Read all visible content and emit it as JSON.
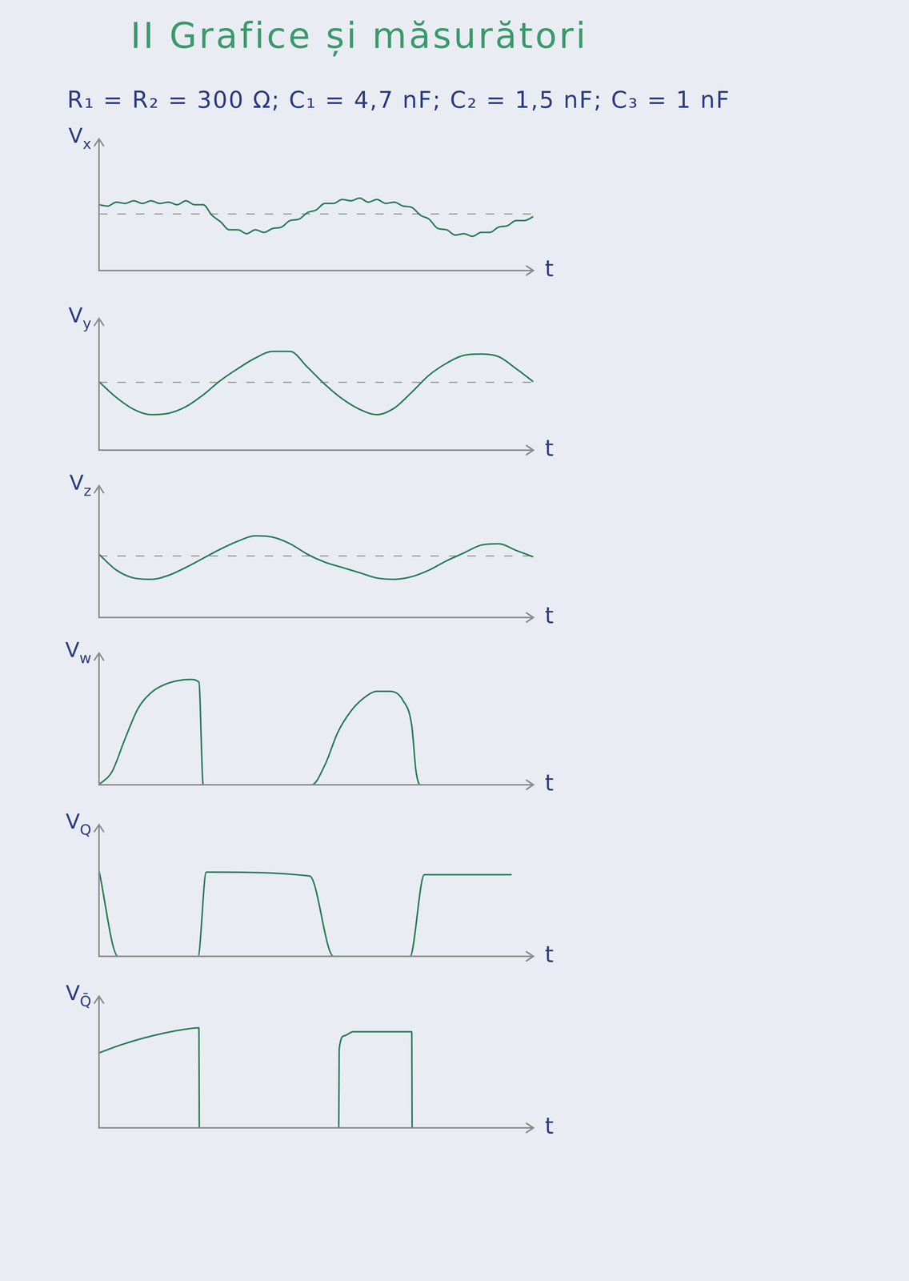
{
  "page": {
    "title": "II Grafice și măsurători",
    "parameters": "R₁ = R₂ = 300 Ω; C₁ = 4,7 nF; C₂ = 1,5 nF; C₃ = 1 nF"
  },
  "chart_data": [
    {
      "type": "line",
      "ylabel": "Vx",
      "xlabel": "t",
      "xlim": [
        0,
        100
      ],
      "ylim": [
        0,
        10
      ],
      "tick_labels": false,
      "grid": false,
      "x": [
        0,
        2,
        4,
        6,
        8,
        10,
        12,
        14,
        16,
        18,
        20,
        22,
        24,
        26,
        28,
        30,
        32,
        34,
        36,
        38,
        40,
        42,
        44,
        46,
        48,
        50,
        52,
        54,
        56,
        58,
        60,
        62,
        64,
        66,
        68,
        70,
        72,
        74,
        76,
        78,
        80,
        82,
        84,
        86,
        88,
        90,
        92,
        94,
        96,
        98,
        100
      ],
      "series": [
        {
          "color": "#2b7d57",
          "line_style": "solid",
          "marker": "none",
          "values": [
            5.0,
            4.9,
            5.2,
            5.1,
            5.3,
            5.1,
            5.3,
            5.1,
            5.2,
            5.0,
            5.3,
            5.0,
            5.0,
            4.2,
            3.7,
            3.1,
            3.1,
            2.8,
            3.1,
            2.9,
            3.2,
            3.3,
            3.8,
            3.9,
            4.4,
            4.6,
            5.1,
            5.1,
            5.4,
            5.3,
            5.5,
            5.2,
            5.4,
            5.1,
            5.2,
            4.9,
            4.8,
            4.2,
            3.9,
            3.2,
            3.1,
            2.7,
            2.8,
            2.6,
            2.9,
            2.9,
            3.3,
            3.4,
            3.8,
            3.8,
            4.1
          ]
        },
        {
          "color": "#9a9a9a",
          "line_style": "dashed",
          "marker": "none",
          "values": [
            4.3,
            4.3,
            4.3,
            4.3,
            4.3,
            4.3,
            4.3,
            4.3,
            4.3,
            4.3,
            4.3,
            4.3,
            4.3,
            4.3,
            4.3,
            4.3,
            4.3,
            4.3,
            4.3,
            4.3,
            4.3,
            4.3,
            4.3,
            4.3,
            4.3,
            4.3,
            4.3,
            4.3,
            4.3,
            4.3,
            4.3,
            4.3,
            4.3,
            4.3,
            4.3,
            4.3,
            4.3,
            4.3,
            4.3,
            4.3,
            4.3,
            4.3,
            4.3,
            4.3,
            4.3,
            4.3,
            4.3,
            4.3,
            4.3,
            4.3,
            4.3
          ]
        }
      ]
    },
    {
      "type": "line",
      "ylabel": "Vy",
      "xlabel": "t",
      "xlim": [
        0,
        100
      ],
      "ylim": [
        0,
        10
      ],
      "tick_labels": false,
      "grid": false,
      "x": [
        0,
        4,
        8,
        12,
        16,
        20,
        24,
        28,
        32,
        36,
        40,
        44,
        48,
        52,
        56,
        60,
        64,
        68,
        72,
        76,
        80,
        84,
        88,
        92,
        96,
        100
      ],
      "series": [
        {
          "color": "#2b7d57",
          "line_style": "solid",
          "marker": "none",
          "values": [
            5.2,
            4.0,
            3.1,
            2.7,
            2.8,
            3.3,
            4.2,
            5.3,
            6.2,
            7.0,
            7.5,
            7.5,
            6.3,
            5.0,
            3.9,
            3.1,
            2.7,
            3.2,
            4.4,
            5.7,
            6.6,
            7.2,
            7.3,
            7.1,
            6.2,
            5.2
          ]
        },
        {
          "color": "#9a9a9a",
          "line_style": "dashed",
          "marker": "none",
          "values": [
            5.15,
            5.15,
            5.15,
            5.15,
            5.15,
            5.15,
            5.15,
            5.15,
            5.15,
            5.15,
            5.15,
            5.15,
            5.15,
            5.15,
            5.15,
            5.15,
            5.15,
            5.15,
            5.15,
            5.15,
            5.15,
            5.15,
            5.15,
            5.15,
            5.15,
            5.15
          ]
        }
      ]
    },
    {
      "type": "line",
      "ylabel": "Vz",
      "xlabel": "t",
      "xlim": [
        0,
        100
      ],
      "ylim": [
        0,
        10
      ],
      "tick_labels": false,
      "grid": false,
      "x": [
        0,
        4,
        8,
        12,
        16,
        20,
        24,
        28,
        32,
        36,
        40,
        44,
        48,
        52,
        56,
        60,
        64,
        68,
        72,
        76,
        80,
        84,
        88,
        92,
        96,
        100
      ],
      "series": [
        {
          "color": "#2b7d57",
          "line_style": "solid",
          "marker": "none",
          "values": [
            4.8,
            3.6,
            3.0,
            2.9,
            3.2,
            3.8,
            4.5,
            5.2,
            5.8,
            6.2,
            6.1,
            5.6,
            4.8,
            4.2,
            3.8,
            3.4,
            3.0,
            2.9,
            3.1,
            3.6,
            4.3,
            4.9,
            5.5,
            5.6,
            5.1,
            4.6
          ]
        },
        {
          "color": "#9a9a9a",
          "line_style": "dashed",
          "marker": "none",
          "values": [
            4.67,
            4.67,
            4.67,
            4.67,
            4.67,
            4.67,
            4.67,
            4.67,
            4.67,
            4.67,
            4.67,
            4.67,
            4.67,
            4.67,
            4.67,
            4.67,
            4.67,
            4.67,
            4.67,
            4.67,
            4.67,
            4.67,
            4.67,
            4.67,
            4.67,
            4.67
          ]
        }
      ]
    },
    {
      "type": "line",
      "ylabel": "Vw",
      "xlabel": "t",
      "xlim": [
        0,
        100
      ],
      "ylim": [
        0,
        10
      ],
      "tick_labels": false,
      "grid": false,
      "x": [
        0,
        3,
        6,
        9,
        12,
        15,
        18,
        21,
        23,
        24,
        36,
        49,
        52,
        55,
        58,
        61,
        64,
        67,
        70,
        72,
        73,
        74,
        100
      ],
      "series": [
        {
          "color": "#2b7d57",
          "line_style": "solid",
          "marker": "none",
          "values": [
            0,
            1.0,
            3.5,
            5.8,
            7.0,
            7.6,
            7.9,
            8.0,
            7.8,
            0,
            0,
            0,
            1.5,
            4.0,
            5.6,
            6.6,
            7.1,
            7.1,
            6.4,
            4.5,
            1.0,
            0,
            0
          ]
        }
      ]
    },
    {
      "type": "line",
      "ylabel": "VQ",
      "xlabel": "t",
      "xlim": [
        0,
        100
      ],
      "ylim": [
        0,
        10
      ],
      "tick_labels": false,
      "grid": false,
      "x": [
        0,
        4.4,
        22.8,
        24.7,
        48.5,
        54,
        71.6,
        74.9,
        95
      ],
      "series": [
        {
          "color": "#2b7d57",
          "line_style": "solid",
          "marker": "none",
          "values": [
            6.5,
            0,
            0,
            6.4,
            6.1,
            0,
            0,
            6.2,
            6.2
          ]
        }
      ]
    },
    {
      "type": "line",
      "ylabel": "VQ̄",
      "xlabel": "t",
      "xlim": [
        0,
        100
      ],
      "ylim": [
        0,
        10
      ],
      "tick_labels": false,
      "grid": false,
      "x": [
        0,
        5,
        10,
        15,
        20,
        23,
        23.1,
        55.2,
        55.3,
        56.5,
        58.5,
        72,
        72.1,
        95
      ],
      "series": [
        {
          "color": "#2b7d57",
          "line_style": "solid",
          "marker": "none",
          "values": [
            5.7,
            6.3,
            6.8,
            7.2,
            7.5,
            7.6,
            0,
            0,
            6.0,
            7.0,
            7.3,
            7.3,
            0,
            0
          ]
        }
      ]
    }
  ]
}
